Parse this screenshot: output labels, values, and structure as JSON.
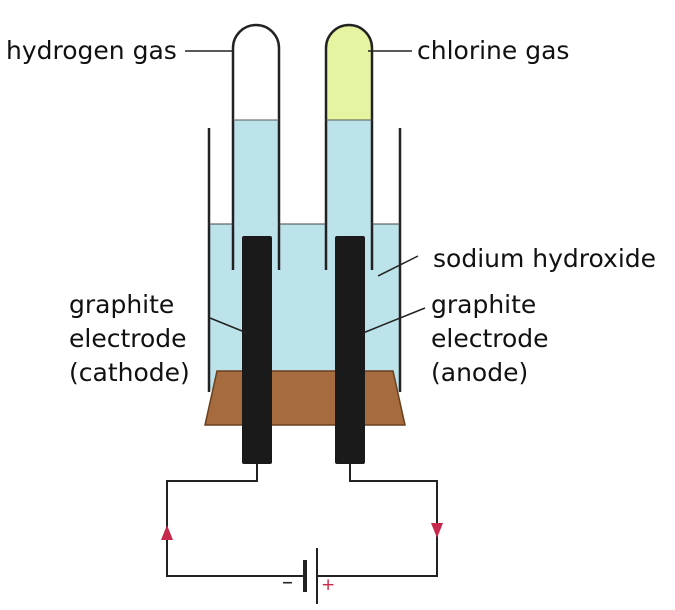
{
  "labels": {
    "hydrogen_gas": "hydrogen gas",
    "chlorine_gas": "chlorine gas",
    "sodium_hydroxide": "sodium hydroxide",
    "cathode": [
      "graphite",
      "electrode",
      "(cathode)"
    ],
    "anode": [
      "graphite",
      "electrode",
      "(anode)"
    ]
  },
  "battery": {
    "negative": "–",
    "positive": "+"
  },
  "colors": {
    "solution": "#bde3ea",
    "chlorine_gas": "#e5f4a0",
    "rubber_stopper": "#a66b3e",
    "electrode": "#1a1a1a",
    "current_arrow": "#c8284c",
    "outline": "#222222"
  }
}
